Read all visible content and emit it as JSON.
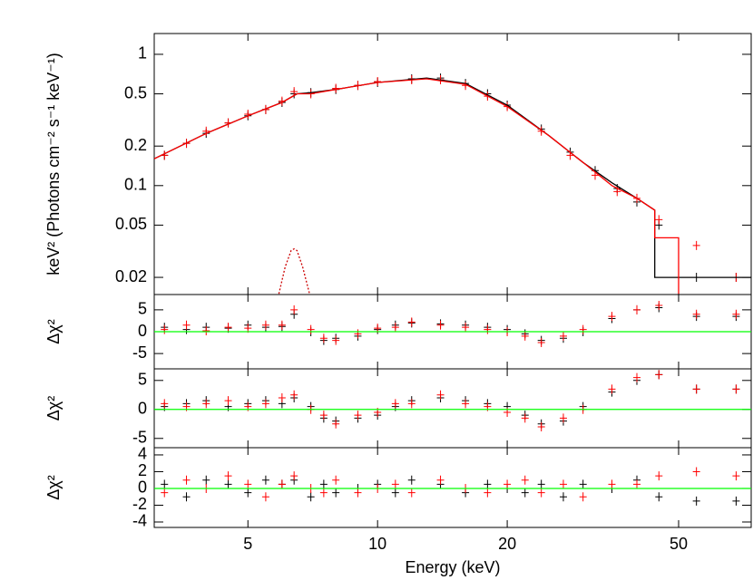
{
  "chart_data": [
    {
      "type": "spectrum",
      "ylabel": "keV² (Photons cm⁻² s⁻¹ keV⁻¹)",
      "xlog": true,
      "ylog": true,
      "xlim": [
        3.03,
        73.7
      ],
      "ylim": [
        0.0148,
        1.44
      ],
      "yticks": [
        1,
        0.5,
        0.2,
        0.1,
        0.05,
        0.02
      ],
      "x": [
        3.2,
        3.6,
        4,
        4.5,
        5,
        5.5,
        6,
        6.4,
        7,
        8,
        9,
        10,
        12,
        14,
        16,
        18,
        20,
        24,
        28,
        32,
        36,
        40,
        45,
        55,
        68
      ],
      "series": [
        {
          "color": "#000000",
          "values": [
            0.17,
            0.21,
            0.25,
            0.3,
            0.34,
            0.38,
            0.43,
            0.5,
            0.51,
            0.54,
            0.58,
            0.61,
            0.65,
            0.66,
            0.6,
            0.5,
            0.41,
            0.27,
            0.18,
            0.13,
            0.095,
            0.075,
            0.05,
            0.02,
            0.02
          ]
        },
        {
          "color": "#ff0000",
          "values": [
            0.17,
            0.21,
            0.26,
            0.3,
            0.35,
            0.38,
            0.44,
            0.52,
            0.5,
            0.55,
            0.58,
            0.62,
            0.64,
            0.64,
            0.58,
            0.48,
            0.4,
            0.26,
            0.17,
            0.12,
            0.09,
            0.08,
            0.055,
            0.035,
            0.02
          ]
        }
      ],
      "models": [
        {
          "color": "#000000",
          "x": [
            3.03,
            4,
            5,
            6,
            6.5,
            7,
            8,
            10,
            13,
            16,
            20,
            25,
            30,
            35,
            40,
            44,
            44,
            73.7
          ],
          "values": [
            0.16,
            0.25,
            0.34,
            0.43,
            0.5,
            0.51,
            0.54,
            0.61,
            0.66,
            0.6,
            0.41,
            0.24,
            0.15,
            0.105,
            0.08,
            0.065,
            0.02,
            0.02
          ]
        },
        {
          "color": "#ff0000",
          "x": [
            3.03,
            4,
            5,
            6,
            6.5,
            7,
            8,
            10,
            13,
            16,
            20,
            25,
            30,
            35,
            40,
            44,
            44,
            50,
            50
          ],
          "values": [
            0.16,
            0.25,
            0.34,
            0.43,
            0.5,
            0.5,
            0.54,
            0.61,
            0.65,
            0.59,
            0.4,
            0.24,
            0.15,
            0.1,
            0.08,
            0.065,
            0.04,
            0.04,
            0.015
          ]
        },
        {
          "color": "#cc0000",
          "dashed": true,
          "x": [
            5.9,
            6.1,
            6.3,
            6.4,
            6.5,
            6.7,
            6.95
          ],
          "values": [
            0.015,
            0.024,
            0.032,
            0.033,
            0.032,
            0.024,
            0.015
          ]
        }
      ]
    },
    {
      "type": "residual",
      "ylabel": "Δχ²",
      "xlog": true,
      "xlim": [
        3.03,
        73.7
      ],
      "ylim": [
        -8.5,
        8.5
      ],
      "yticks": [
        5,
        0,
        -5
      ],
      "zero_line": {
        "value": 0,
        "color": "#00ff00"
      },
      "x": [
        3.2,
        3.6,
        4,
        4.5,
        5,
        5.5,
        6,
        6.4,
        7,
        7.5,
        8,
        9,
        10,
        11,
        12,
        14,
        16,
        18,
        20,
        22,
        24,
        27,
        30,
        35,
        40,
        45,
        55,
        68
      ],
      "series": [
        {
          "color": "#000000",
          "values": [
            1,
            0.5,
            1,
            0.8,
            1.5,
            1,
            1.2,
            4,
            0,
            -2,
            -1.5,
            -1,
            0.5,
            1.5,
            2,
            1.8,
            1.5,
            1,
            0.5,
            -0.5,
            -2,
            -1.5,
            0,
            3,
            5,
            5.5,
            3.5,
            3.5
          ]
        },
        {
          "color": "#ff0000",
          "values": [
            0.5,
            1.5,
            0.2,
            1,
            0.8,
            1.5,
            1.5,
            5,
            0.5,
            -1.5,
            -2,
            -0.5,
            0.8,
            1,
            2.2,
            1.5,
            1,
            0.5,
            0,
            -1,
            -2.5,
            -1,
            0.5,
            3.5,
            5,
            6,
            4,
            4
          ]
        }
      ]
    },
    {
      "type": "residual",
      "ylabel": "Δχ²",
      "xlog": true,
      "xlim": [
        3.03,
        73.7
      ],
      "ylim": [
        -6.6,
        7.0
      ],
      "yticks": [
        5,
        0,
        -5
      ],
      "zero_line": {
        "value": 0,
        "color": "#00ff00"
      },
      "x": [
        3.2,
        3.6,
        4,
        4.5,
        5,
        5.5,
        6,
        6.4,
        7,
        7.5,
        8,
        9,
        10,
        11,
        12,
        14,
        16,
        18,
        20,
        22,
        24,
        27,
        30,
        35,
        40,
        45,
        55,
        68
      ],
      "series": [
        {
          "color": "#000000",
          "values": [
            0.5,
            1,
            1.5,
            0.5,
            1,
            1.5,
            1,
            2,
            0.5,
            -1.5,
            -2,
            -1.5,
            -1,
            0.5,
            1.5,
            2,
            1.5,
            1,
            0.5,
            -1,
            -2.5,
            -2,
            0.5,
            3,
            5,
            6,
            3.5,
            3.5
          ]
        },
        {
          "color": "#ff0000",
          "values": [
            1,
            0.5,
            1,
            1.5,
            0.5,
            1,
            2,
            2.5,
            0,
            -1,
            -2.5,
            -1,
            -0.5,
            1,
            1,
            2.5,
            1,
            0.5,
            -0.5,
            -1.5,
            -3,
            -1.5,
            0,
            3.5,
            5.5,
            6,
            3.5,
            3.5
          ]
        }
      ]
    },
    {
      "type": "residual",
      "ylabel": "Δχ²",
      "xlabel": "Energy (keV)",
      "xlog": true,
      "xlim": [
        3.03,
        73.7
      ],
      "ylim": [
        -4.65,
        4.86
      ],
      "yticks": [
        4,
        2,
        0,
        -2,
        -4
      ],
      "xticks": [
        5,
        10,
        20,
        50
      ],
      "zero_line": {
        "value": 0,
        "color": "#00ff00"
      },
      "x": [
        3.2,
        3.6,
        4,
        4.5,
        5,
        5.5,
        6,
        6.4,
        7,
        7.5,
        8,
        9,
        10,
        11,
        12,
        14,
        16,
        18,
        20,
        22,
        24,
        27,
        30,
        35,
        40,
        45,
        55,
        68
      ],
      "series": [
        {
          "color": "#000000",
          "values": [
            0.5,
            -1,
            1,
            0.5,
            -0.5,
            1,
            0.5,
            1,
            -1,
            0.5,
            -0.5,
            0,
            0.5,
            -0.5,
            1,
            0.5,
            -0.5,
            0.5,
            0,
            -0.5,
            0.5,
            -1,
            0.5,
            0,
            1,
            -1,
            -1.5,
            -1.5
          ]
        },
        {
          "color": "#ff0000",
          "values": [
            -0.5,
            1,
            0,
            1.5,
            0.5,
            -1,
            0.5,
            1.5,
            0,
            -0.5,
            1,
            -0.5,
            0,
            0.5,
            -0.5,
            1,
            0,
            -0.5,
            0.5,
            1,
            -0.5,
            0.5,
            -1,
            0.5,
            0.5,
            1.5,
            2,
            1.5
          ]
        }
      ]
    }
  ]
}
